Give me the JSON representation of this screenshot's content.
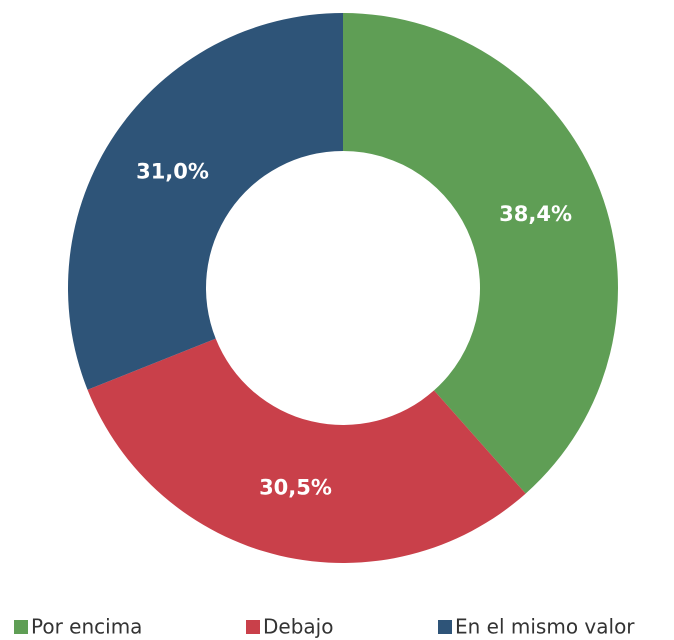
{
  "chart_data": {
    "type": "donut",
    "categories": [
      "Por encima",
      "Debajo",
      "En el mismo valor"
    ],
    "values": [
      38.4,
      30.5,
      31.0
    ],
    "value_labels": [
      "38,4%",
      "30,5%",
      "31,0%"
    ],
    "colors": [
      "#5f9e55",
      "#c9404a",
      "#2e5478"
    ],
    "legend": "bottom"
  }
}
